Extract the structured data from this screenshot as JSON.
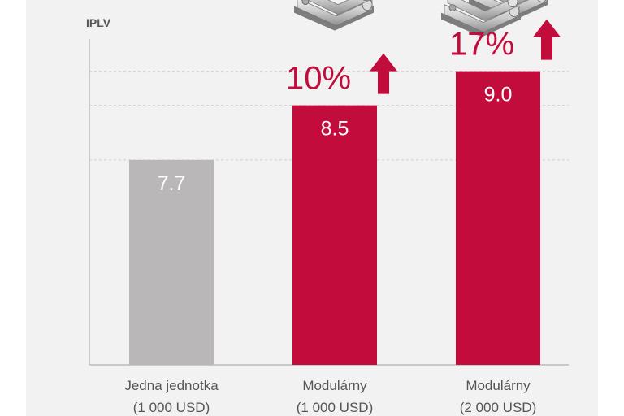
{
  "chart_data": {
    "type": "bar",
    "ylabel": "IPLV",
    "ylim": [
      4.7,
      9.4
    ],
    "gridlines": [
      7.7,
      8.5,
      9.0
    ],
    "categories": [
      {
        "line1": "Jedna jednotka",
        "line2": "(1 000 USD)"
      },
      {
        "line1": "Modulárny",
        "line2": "(1 000 USD)"
      },
      {
        "line1": "Modulárny",
        "line2": "(2 000 USD)"
      }
    ],
    "values": [
      7.7,
      8.5,
      9.0
    ],
    "value_labels": [
      "7.7",
      "8.5",
      "9.0"
    ],
    "colors": [
      "#b9b7b7",
      "#c20c3c",
      "#c20c3c"
    ],
    "annotations": [
      {
        "bar": 1,
        "text": "10%",
        "arrow": "up"
      },
      {
        "bar": 2,
        "text": "17%",
        "arrow": "up"
      }
    ],
    "unit_images": [
      {
        "bar": 1,
        "count": 1
      },
      {
        "bar": 2,
        "count": 2
      }
    ],
    "accent_color": "#c20c3c",
    "grid_color": "#cfcfcf",
    "axis_color": "#c8c8c8",
    "text_color": "#555555"
  }
}
